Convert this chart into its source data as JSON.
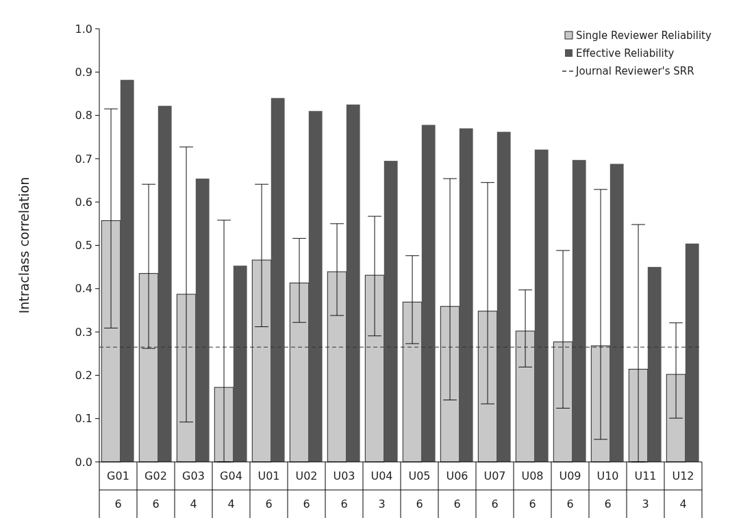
{
  "chart_data": {
    "type": "bar",
    "ylabel": "Intraclass correlation",
    "categories": [
      "G01\n6",
      "G02\n6",
      "G03\n4",
      "G04\n4",
      "U01\n6",
      "U02\n6",
      "U03\n6",
      "U04\n3",
      "U05\n6",
      "U06\n6",
      "U07\n6",
      "U08\n6",
      "U09\n6",
      "U10\n6",
      "U11\n3",
      "U12\n4"
    ],
    "series": [
      {
        "name": "Single Reviewer Reliability",
        "color": "#c8c8c8",
        "values": [
          0.557,
          0.435,
          0.387,
          0.172,
          0.466,
          0.413,
          0.439,
          0.431,
          0.369,
          0.359,
          0.348,
          0.302,
          0.277,
          0.268,
          0.214,
          0.202
        ],
        "errors": [
          [
            0.309,
            0.815
          ],
          [
            0.262,
            0.641
          ],
          [
            0.092,
            0.727
          ],
          [
            0.0,
            0.558
          ],
          [
            0.312,
            0.641
          ],
          [
            0.322,
            0.516
          ],
          [
            0.338,
            0.55
          ],
          [
            0.291,
            0.567
          ],
          [
            0.273,
            0.476
          ],
          [
            0.143,
            0.654
          ],
          [
            0.134,
            0.645
          ],
          [
            0.219,
            0.397
          ],
          [
            0.124,
            0.488
          ],
          [
            0.052,
            0.629
          ],
          [
            0.0,
            0.548
          ],
          [
            0.101,
            0.321
          ]
        ]
      },
      {
        "name": "Effective Reliability",
        "color": "#555555",
        "values": [
          0.882,
          0.822,
          0.654,
          0.453,
          0.84,
          0.81,
          0.825,
          0.695,
          0.778,
          0.77,
          0.762,
          0.721,
          0.697,
          0.688,
          0.45,
          0.504
        ]
      }
    ],
    "ref_lines": [
      {
        "axis": "y",
        "value": 0.265,
        "label": "Journal Reviewer's SRR",
        "color": "#333333",
        "line_style": "dashed"
      }
    ],
    "ylim": [
      0,
      1
    ],
    "yticks": [
      {
        "value": 0,
        "label": "0.0"
      },
      {
        "value": 0.1,
        "label": "0.1"
      },
      {
        "value": 0.2,
        "label": "0.2"
      },
      {
        "value": 0.3,
        "label": "0.3"
      },
      {
        "value": 0.4,
        "label": "0.4"
      },
      {
        "value": 0.5,
        "label": "0.5"
      },
      {
        "value": 0.6,
        "label": "0.6"
      },
      {
        "value": 0.7,
        "label": "0.7"
      },
      {
        "value": 0.8,
        "label": "0.8"
      },
      {
        "value": 0.9,
        "label": "0.9"
      },
      {
        "value": 1,
        "label": "1.0"
      }
    ],
    "grid": false,
    "legend": "top right"
  }
}
